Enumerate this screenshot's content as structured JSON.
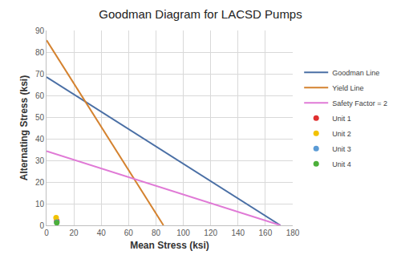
{
  "chart_data": {
    "type": "scatter",
    "title": "Goodman Diagram for LACSD Pumps",
    "x_label": "Mean Stress (ksi)",
    "y_label": "Alternating Stress (ksi)",
    "xlim": [
      0,
      180
    ],
    "xticks": [
      0,
      20,
      40,
      60,
      80,
      100,
      120,
      140,
      160,
      180
    ],
    "ylim": [
      0,
      90
    ],
    "yticks": [
      0,
      10,
      20,
      30,
      40,
      50,
      60,
      70,
      80,
      90
    ],
    "grid": true,
    "legend": "right",
    "series": [
      {
        "name": "Goodman Line",
        "type": "line",
        "color": "#4a6fa5",
        "x": [
          0,
          171
        ],
        "values": [
          68.5,
          0
        ]
      },
      {
        "name": "Yield Line",
        "type": "line",
        "color": "#d4822f",
        "x": [
          0,
          85.5
        ],
        "values": [
          85.5,
          0
        ]
      },
      {
        "name": "Safety Factor = 2",
        "type": "line",
        "color": "#e07ad6",
        "x": [
          0,
          171
        ],
        "values": [
          34.25,
          0
        ]
      },
      {
        "name": "Unit 1",
        "type": "scatter",
        "marker": "circle",
        "color": "#e03030",
        "x": [
          7.5
        ],
        "values": [
          2.0
        ]
      },
      {
        "name": "Unit 2",
        "type": "scatter",
        "marker": "circle",
        "color": "#f2c200",
        "x": [
          7
        ],
        "values": [
          3.5
        ]
      },
      {
        "name": "Unit 3",
        "type": "scatter",
        "marker": "circle",
        "color": "#5b9bd5",
        "x": [
          7.5
        ],
        "values": [
          1.5
        ]
      },
      {
        "name": "Unit 4",
        "type": "scatter",
        "marker": "circle",
        "color": "#4caf3a",
        "x": [
          7.5
        ],
        "values": [
          1.2
        ]
      }
    ]
  }
}
